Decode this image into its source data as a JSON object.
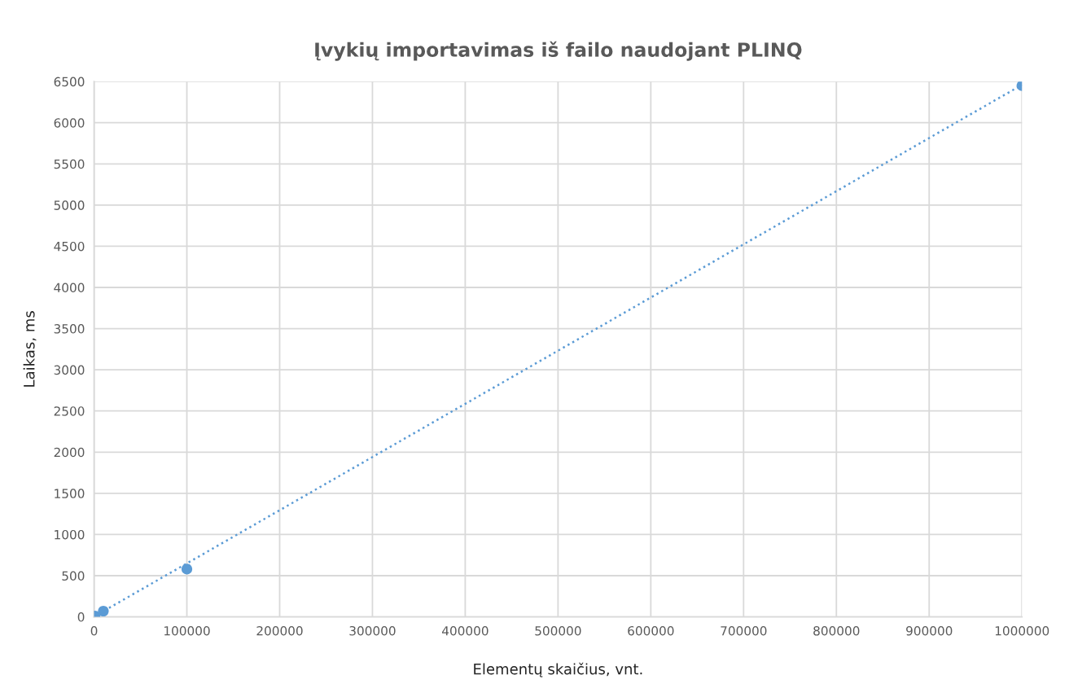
{
  "chart_data": {
    "type": "scatter",
    "title": "Įvykių importavimas iš failo naudojant PLINQ",
    "xlabel": "Elementų skaičius, vnt.",
    "ylabel": "Laikas, ms",
    "x": [
      1000,
      10000,
      100000,
      1000000
    ],
    "series": [
      {
        "color": "#5b9bd5",
        "values": [
          10,
          70,
          580,
          6450
        ],
        "marker": "circle"
      },
      {
        "type": "line",
        "color": "#5b9bd5",
        "x": [
          1000,
          1000000
        ],
        "values": [
          10,
          6460
        ],
        "line_style": "dotted",
        "marker": "none"
      }
    ],
    "xlim": [
      0,
      1000000
    ],
    "xticks": [
      0,
      100000,
      200000,
      300000,
      400000,
      500000,
      600000,
      700000,
      800000,
      900000,
      1000000
    ],
    "ylim": [
      0,
      6500
    ],
    "yticks": [
      0,
      500,
      1000,
      1500,
      2000,
      2500,
      3000,
      3500,
      4000,
      4500,
      5000,
      5500,
      6000,
      6500
    ],
    "grid": true,
    "legend": false
  }
}
